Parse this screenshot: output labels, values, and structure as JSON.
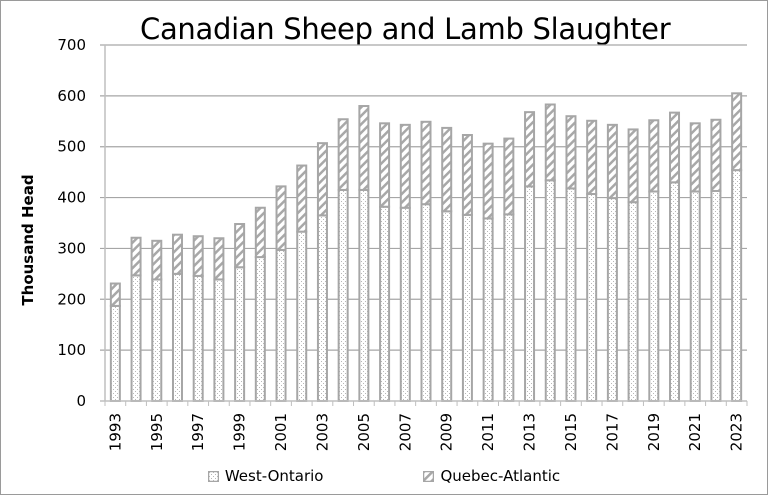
{
  "chart_data": {
    "type": "bar",
    "stacked": true,
    "title": "Canadian Sheep and Lamb Slaughter",
    "xlabel": "",
    "ylabel": "Thousand Head",
    "ylim": [
      0,
      700
    ],
    "yticks": [
      0,
      100,
      200,
      300,
      400,
      500,
      600,
      700
    ],
    "xtick_labels": [
      "1993",
      "1995",
      "1997",
      "1999",
      "2001",
      "2003",
      "2005",
      "2007",
      "2009",
      "2011",
      "2013",
      "2015",
      "2017",
      "2019",
      "2021",
      "2023"
    ],
    "grid": true,
    "legend_position": "bottom",
    "categories": [
      "1993",
      "1994",
      "1995",
      "1996",
      "1997",
      "1998",
      "1999",
      "2000",
      "2001",
      "2002",
      "2003",
      "2004",
      "2005",
      "2006",
      "2007",
      "2008",
      "2009",
      "2010",
      "2011",
      "2012",
      "2013",
      "2014",
      "2015",
      "2016",
      "2017",
      "2018",
      "2019",
      "2020",
      "2021",
      "2022",
      "2023"
    ],
    "series": [
      {
        "name": "West-Ontario",
        "pattern": "dots",
        "values": [
          187,
          247,
          239,
          250,
          246,
          239,
          263,
          283,
          297,
          333,
          365,
          415,
          415,
          382,
          380,
          387,
          373,
          366,
          359,
          367,
          422,
          434,
          418,
          407,
          399,
          391,
          412,
          430,
          412,
          413,
          454
        ]
      },
      {
        "name": "Quebec-Atlantic",
        "pattern": "diagonal-stripes",
        "values": [
          44,
          74,
          76,
          77,
          78,
          81,
          85,
          97,
          125,
          130,
          142,
          139,
          165,
          164,
          163,
          162,
          164,
          157,
          147,
          149,
          146,
          149,
          142,
          144,
          144,
          143,
          140,
          137,
          134,
          140,
          151
        ]
      }
    ],
    "totals": [
      231,
      321,
      315,
      327,
      324,
      320,
      348,
      380,
      422,
      463,
      507,
      554,
      580,
      546,
      543,
      549,
      537,
      523,
      506,
      516,
      568,
      583,
      560,
      551,
      543,
      534,
      552,
      567,
      546,
      553,
      605
    ]
  },
  "colors": {
    "bar_outline": "#a6a6a6",
    "gridline": "#a6a6a6",
    "axis": "#bfbfbf",
    "text": "#000000",
    "frame": "#9a9a9a"
  }
}
